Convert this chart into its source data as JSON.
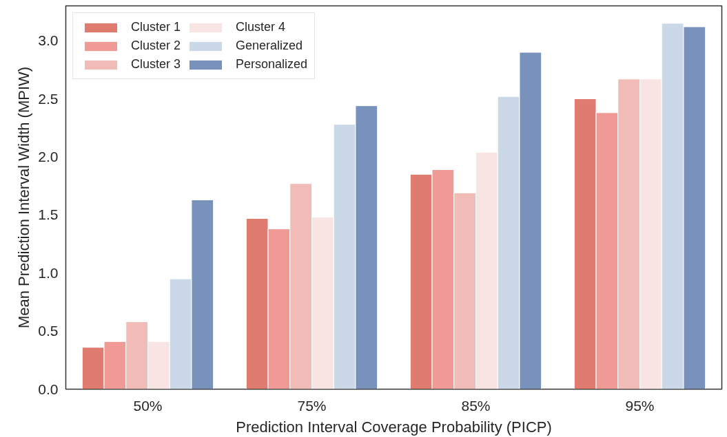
{
  "chart_data": {
    "type": "bar",
    "xlabel": "Prediction Interval Coverage Probability (PICP)",
    "ylabel": "Mean Prediction Interval Width (MPIW)",
    "categories": [
      "50%",
      "75%",
      "85%",
      "95%"
    ],
    "series": [
      {
        "name": "Cluster 1",
        "color": "#e07b70",
        "values": [
          0.36,
          1.47,
          1.85,
          2.5
        ]
      },
      {
        "name": "Cluster 2",
        "color": "#ef9a94",
        "values": [
          0.41,
          1.38,
          1.89,
          2.38
        ]
      },
      {
        "name": "Cluster 3",
        "color": "#f1bbb7",
        "values": [
          0.58,
          1.77,
          1.69,
          2.67
        ]
      },
      {
        "name": "Cluster 4",
        "color": "#f8e4e3",
        "values": [
          0.41,
          1.48,
          2.04,
          2.67
        ]
      },
      {
        "name": "Generalized",
        "color": "#cbd8e8",
        "values": [
          0.95,
          2.28,
          2.52,
          3.15
        ]
      },
      {
        "name": "Personalized",
        "color": "#7892bb",
        "values": [
          1.63,
          2.44,
          2.9,
          3.12
        ]
      }
    ],
    "ylim": [
      0,
      3.3
    ],
    "yticks": [
      {
        "value": 0,
        "label": "0.0"
      },
      0.5,
      {
        "value": 1,
        "label": "1.0"
      },
      1.5,
      {
        "value": 2,
        "label": "2.0"
      },
      2.5,
      {
        "value": 3,
        "label": "3.0"
      }
    ],
    "grid": false,
    "legend": "top left"
  }
}
